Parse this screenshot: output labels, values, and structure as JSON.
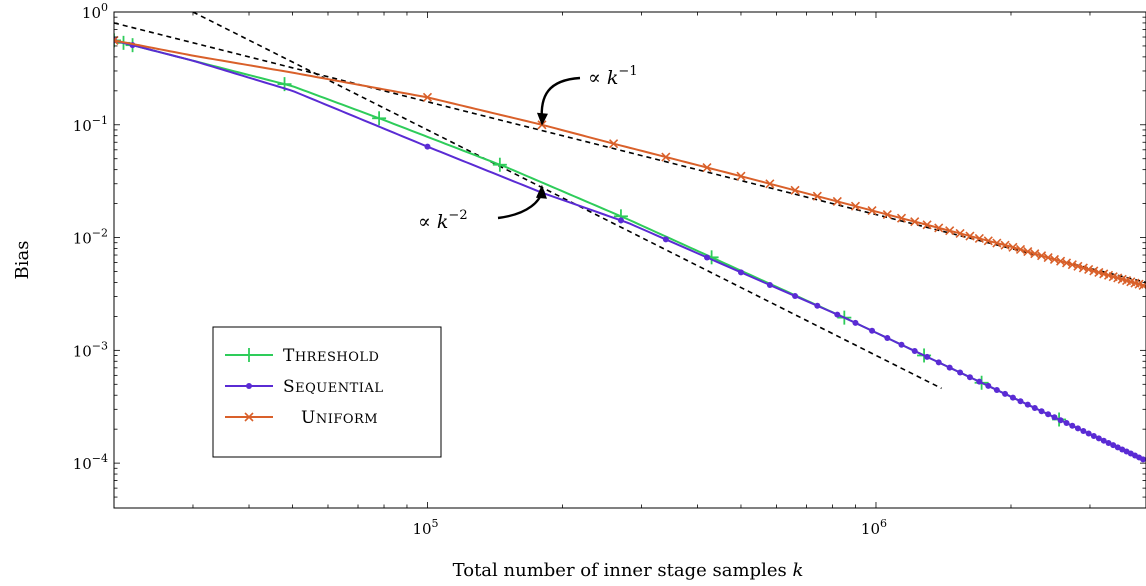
{
  "chart_data": {
    "type": "line",
    "xscale": "log",
    "yscale": "log",
    "xlabel": "Total number of inner stage samples k",
    "xlabel_var": "k",
    "xlabel_prefix": "Total number of inner stage samples ",
    "ylabel": "Bias",
    "xlim": [
      20000,
      4000000
    ],
    "ylim": [
      4e-05,
      1
    ],
    "x_ticks": [
      {
        "value": 100000,
        "base": "10",
        "exp": "5"
      },
      {
        "value": 1000000,
        "base": "10",
        "exp": "6"
      }
    ],
    "y_ticks": [
      {
        "value": 1,
        "base": "10",
        "exp": "0"
      },
      {
        "value": 0.1,
        "base": "10",
        "exp": "−1"
      },
      {
        "value": 0.01,
        "base": "10",
        "exp": "−2"
      },
      {
        "value": 0.001,
        "base": "10",
        "exp": "−3"
      },
      {
        "value": 0.0001,
        "base": "10",
        "exp": "−4"
      }
    ],
    "grid": false,
    "legend_position": "bottom-left",
    "series": [
      {
        "name": "Threshold",
        "color": "#2ecc5a",
        "marker": "plus",
        "curve": [
          [
            20000,
            0.56
          ],
          [
            30000,
            0.37
          ],
          [
            50000,
            0.22
          ],
          [
            80000,
            0.11
          ],
          [
            150000,
            0.042
          ],
          [
            280000,
            0.0145
          ],
          [
            850000,
            0.00195
          ],
          [
            4000000,
            0.000105
          ]
        ],
        "x_markers": [
          20000,
          21000,
          22000,
          48000,
          78000,
          145000,
          270000,
          430000,
          850000,
          1280000,
          1720000,
          2560000
        ]
      },
      {
        "name": "Sequential",
        "color": "#5a2bd4",
        "marker": "dot",
        "curve": [
          [
            20000,
            0.56
          ],
          [
            30000,
            0.37
          ],
          [
            50000,
            0.2
          ],
          [
            100000,
            0.064
          ],
          [
            180000,
            0.025
          ],
          [
            280000,
            0.0135
          ],
          [
            850000,
            0.00195
          ],
          [
            4000000,
            0.000105
          ]
        ],
        "x_markers": [
          20000,
          22000,
          100000,
          180000,
          270000,
          340000,
          420000,
          500000,
          580000,
          660000,
          740000,
          820000,
          900000,
          980000,
          1060000,
          1140000,
          1220000,
          1300000,
          1380000,
          1460000,
          1540000,
          1620000,
          1700000,
          1780000,
          1860000,
          1940000,
          2020000,
          2100000,
          2180000,
          2260000,
          2340000,
          2420000,
          2500000,
          2580000,
          2660000,
          2740000,
          2820000,
          2900000,
          2980000,
          3060000,
          3140000,
          3220000,
          3300000,
          3380000,
          3460000,
          3540000,
          3620000,
          3700000,
          3780000,
          3860000,
          3940000
        ]
      },
      {
        "name": "Uniform",
        "color": "#d9602a",
        "marker": "cross",
        "curve": [
          [
            20000,
            0.56
          ],
          [
            30000,
            0.41
          ],
          [
            50000,
            0.29
          ],
          [
            100000,
            0.175
          ],
          [
            180000,
            0.1
          ],
          [
            260000,
            0.068
          ],
          [
            500000,
            0.035
          ],
          [
            1000000,
            0.017
          ],
          [
            2000000,
            0.0083
          ],
          [
            4000000,
            0.0037
          ]
        ],
        "x_markers": [
          20000,
          100000,
          180000,
          260000,
          340000,
          420000,
          500000,
          580000,
          660000,
          740000,
          820000,
          900000,
          980000,
          1060000,
          1140000,
          1220000,
          1300000,
          1380000,
          1460000,
          1540000,
          1620000,
          1700000,
          1780000,
          1860000,
          1940000,
          2020000,
          2100000,
          2180000,
          2260000,
          2340000,
          2420000,
          2500000,
          2580000,
          2660000,
          2740000,
          2820000,
          2900000,
          2980000,
          3060000,
          3140000,
          3220000,
          3300000,
          3380000,
          3460000,
          3540000,
          3620000,
          3700000,
          3780000,
          3860000,
          3940000
        ]
      }
    ],
    "reference_lines": [
      {
        "label_prefix": "∝ ",
        "label_var": "k",
        "label_exp": "−1",
        "slope": -1,
        "start": [
          20000,
          0.8
        ],
        "end": [
          4000000,
          0.004
        ]
      },
      {
        "label_prefix": "∝ ",
        "label_var": "k",
        "label_exp": "−2",
        "slope": -2,
        "start": [
          30000,
          1.0
        ],
        "end": [
          1400000,
          0.00046
        ]
      }
    ],
    "annotations": [
      {
        "text_ref": "reference_lines.0",
        "arrow_to": [
          180000,
          0.1
        ]
      },
      {
        "text_ref": "reference_lines.1",
        "arrow_to": [
          180000,
          0.03
        ]
      }
    ]
  },
  "colors": {
    "axis": "#000000",
    "reference": "#000000"
  }
}
